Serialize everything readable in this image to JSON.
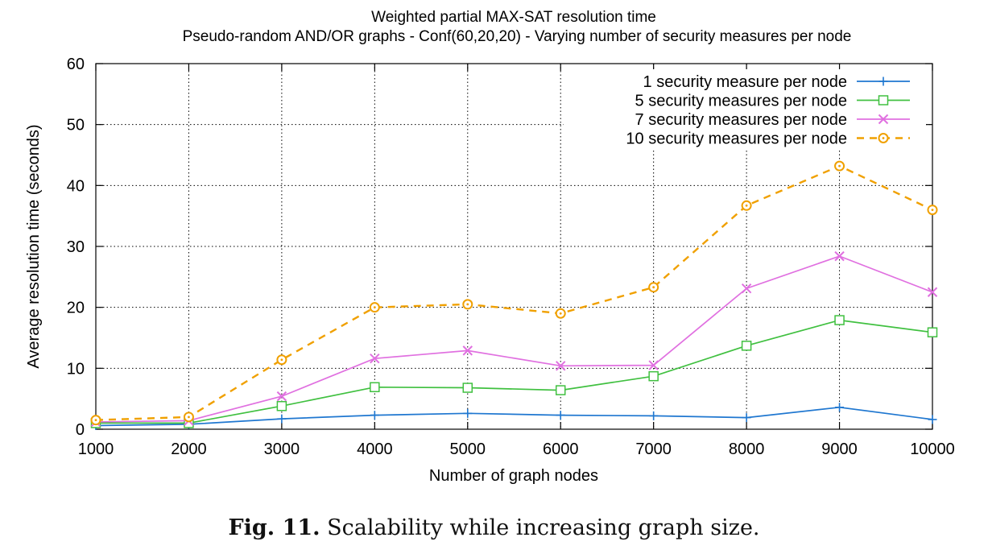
{
  "caption": {
    "label": "Fig. 11.",
    "text": "Scalability while increasing graph size."
  },
  "chart_data": {
    "type": "line",
    "title": "Weighted partial MAX-SAT resolution time",
    "subtitle": "Pseudo-random AND/OR graphs - Conf(60,20,20) - Varying number of security measures per node",
    "xlabel": "Number of graph nodes",
    "ylabel": "Average resolution time (seconds)",
    "x": [
      1000,
      2000,
      3000,
      4000,
      5000,
      6000,
      7000,
      8000,
      9000,
      10000
    ],
    "xlim": [
      1000,
      10000
    ],
    "ylim": [
      0,
      60
    ],
    "yticks": [
      0,
      10,
      20,
      30,
      40,
      50,
      60
    ],
    "grid": true,
    "legend_position": "top-right",
    "series": [
      {
        "name": "1 security measure per node",
        "color": "#1f77d0",
        "marker": "plus",
        "dash": "solid",
        "values": [
          0.6,
          0.8,
          1.7,
          2.3,
          2.6,
          2.3,
          2.2,
          1.9,
          3.6,
          1.6
        ]
      },
      {
        "name": "5 security measures per node",
        "color": "#40c040",
        "marker": "square",
        "dash": "solid",
        "values": [
          1.0,
          1.0,
          3.8,
          6.9,
          6.8,
          6.4,
          8.7,
          13.7,
          17.9,
          15.9
        ]
      },
      {
        "name": "7 security measures per node",
        "color": "#e070e0",
        "marker": "x",
        "dash": "solid",
        "values": [
          1.2,
          1.4,
          5.4,
          11.6,
          12.9,
          10.4,
          10.5,
          23.1,
          28.4,
          22.5
        ]
      },
      {
        "name": "10 security measures per node",
        "color": "#f0a000",
        "marker": "circle",
        "dash": "dashed",
        "values": [
          1.5,
          2.0,
          11.4,
          20.0,
          20.5,
          19.0,
          23.3,
          36.7,
          43.2,
          36.0
        ]
      }
    ]
  }
}
